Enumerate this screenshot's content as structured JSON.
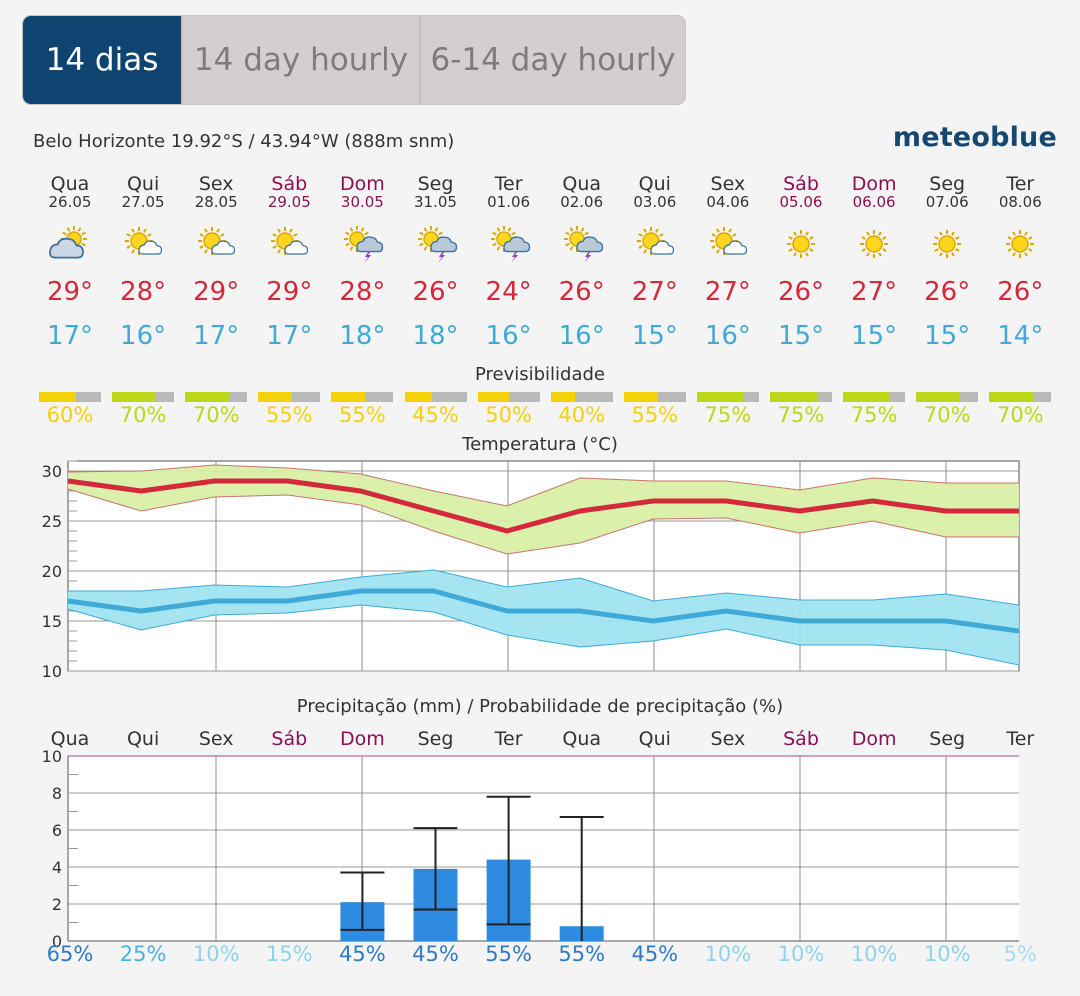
{
  "tabs": [
    {
      "label": "14 dias",
      "active": true
    },
    {
      "label": "14 day hourly",
      "active": false
    },
    {
      "label": "6-14 day hourly",
      "active": false
    }
  ],
  "location": {
    "text": "Belo Horizonte  19.92°S / 43.94°W (888m snm)"
  },
  "brand": {
    "name": "meteoblue"
  },
  "colors": {
    "brand": "#14486f",
    "tab_active": "#0f4471",
    "max_temp": "#d4283c",
    "min_temp": "#3fa9d8",
    "weekend": "#8c0f52",
    "precip_bar": "#2e8be0"
  },
  "days": [
    {
      "name": "Qua",
      "date": "26.05",
      "weekend": false,
      "icon": "partly-cloudy-icon",
      "max": "29°",
      "min": "17°"
    },
    {
      "name": "Qui",
      "date": "27.05",
      "weekend": false,
      "icon": "sun-cloud-icon",
      "max": "28°",
      "min": "16°"
    },
    {
      "name": "Sex",
      "date": "28.05",
      "weekend": false,
      "icon": "sun-cloud-icon",
      "max": "29°",
      "min": "17°"
    },
    {
      "name": "Sáb",
      "date": "29.05",
      "weekend": true,
      "icon": "sun-cloud-icon",
      "max": "29°",
      "min": "17°"
    },
    {
      "name": "Dom",
      "date": "30.05",
      "weekend": true,
      "icon": "sun-storm-icon",
      "max": "28°",
      "min": "18°"
    },
    {
      "name": "Seg",
      "date": "31.05",
      "weekend": false,
      "icon": "sun-storm-icon",
      "max": "26°",
      "min": "18°"
    },
    {
      "name": "Ter",
      "date": "01.06",
      "weekend": false,
      "icon": "sun-storm-icon",
      "max": "24°",
      "min": "16°"
    },
    {
      "name": "Qua",
      "date": "02.06",
      "weekend": false,
      "icon": "sun-storm-icon",
      "max": "26°",
      "min": "16°"
    },
    {
      "name": "Qui",
      "date": "03.06",
      "weekend": false,
      "icon": "sun-cloud-icon",
      "max": "27°",
      "min": "15°"
    },
    {
      "name": "Sex",
      "date": "04.06",
      "weekend": false,
      "icon": "sun-cloud-icon",
      "max": "27°",
      "min": "16°"
    },
    {
      "name": "Sáb",
      "date": "05.06",
      "weekend": true,
      "icon": "sun-icon",
      "max": "26°",
      "min": "15°"
    },
    {
      "name": "Dom",
      "date": "06.06",
      "weekend": true,
      "icon": "sun-icon",
      "max": "27°",
      "min": "15°"
    },
    {
      "name": "Seg",
      "date": "07.06",
      "weekend": false,
      "icon": "sun-icon",
      "max": "26°",
      "min": "15°"
    },
    {
      "name": "Ter",
      "date": "08.06",
      "weekend": false,
      "icon": "sun-icon",
      "max": "26°",
      "min": "14°"
    }
  ],
  "predictability": {
    "title": "Previsibilidade",
    "values": [
      {
        "pct": "60%",
        "fraction": 0.6,
        "color": "#f5d10a"
      },
      {
        "pct": "70%",
        "fraction": 0.7,
        "color": "#bcd618"
      },
      {
        "pct": "70%",
        "fraction": 0.7,
        "color": "#bcd618"
      },
      {
        "pct": "55%",
        "fraction": 0.55,
        "color": "#f5d10a"
      },
      {
        "pct": "55%",
        "fraction": 0.55,
        "color": "#f5d10a"
      },
      {
        "pct": "45%",
        "fraction": 0.45,
        "color": "#f5d10a"
      },
      {
        "pct": "50%",
        "fraction": 0.5,
        "color": "#f5d10a"
      },
      {
        "pct": "40%",
        "fraction": 0.4,
        "color": "#f5d10a"
      },
      {
        "pct": "55%",
        "fraction": 0.55,
        "color": "#f5d10a"
      },
      {
        "pct": "75%",
        "fraction": 0.75,
        "color": "#bcd618"
      },
      {
        "pct": "75%",
        "fraction": 0.75,
        "color": "#bcd618"
      },
      {
        "pct": "75%",
        "fraction": 0.75,
        "color": "#bcd618"
      },
      {
        "pct": "70%",
        "fraction": 0.7,
        "color": "#bcd618"
      },
      {
        "pct": "70%",
        "fraction": 0.7,
        "color": "#bcd618"
      }
    ]
  },
  "chart_data": [
    {
      "type": "line",
      "title": "Temperatura (°C)",
      "xlabel": "",
      "ylabel": "",
      "ylim": [
        10,
        31
      ],
      "yticks": [
        10,
        15,
        20,
        25,
        30
      ],
      "grid": true,
      "x": [
        "26.05",
        "27.05",
        "28.05",
        "29.05",
        "30.05",
        "31.05",
        "01.06",
        "02.06",
        "03.06",
        "04.06",
        "05.06",
        "06.06",
        "07.06",
        "08.06"
      ],
      "series": [
        {
          "values": [
            29,
            28,
            29,
            29,
            28,
            26,
            24,
            26,
            27,
            27,
            26,
            27,
            26,
            26
          ],
          "band_low": [
            28.2,
            26,
            27.4,
            27.6,
            26.6,
            24,
            21.7,
            22.8,
            25.2,
            25.3,
            23.8,
            25,
            23.4,
            23.4
          ],
          "band_high": [
            29.9,
            30,
            30.6,
            30.3,
            29.7,
            28,
            26.5,
            29.3,
            29,
            29,
            28.1,
            29.3,
            28.8,
            28.8
          ],
          "color": "#d4283c"
        },
        {
          "values": [
            17,
            16,
            17,
            17,
            18,
            18,
            16,
            16,
            15,
            16,
            15,
            15,
            15,
            14
          ],
          "band_low": [
            16.2,
            14.1,
            15.6,
            15.8,
            16.6,
            15.9,
            13.6,
            12.4,
            13,
            14.2,
            12.6,
            12.6,
            12.1,
            10.6
          ],
          "band_high": [
            18,
            18,
            18.6,
            18.4,
            19.4,
            20.1,
            18.4,
            19.3,
            17,
            17.8,
            17.1,
            17.1,
            17.7,
            16.6
          ],
          "color": "#3fa9d8"
        }
      ]
    },
    {
      "type": "bar",
      "title": "Precipitação (mm) / Probabilidade de precipitação (%)",
      "xlabel": "",
      "ylabel": "",
      "ylim": [
        0,
        10
      ],
      "yticks": [
        0,
        2,
        4,
        6,
        8,
        10
      ],
      "grid": true,
      "categories": [
        "Qua",
        "Qui",
        "Sex",
        "Sáb",
        "Dom",
        "Seg",
        "Ter",
        "Qua",
        "Qui",
        "Sex",
        "Sáb",
        "Dom",
        "Seg",
        "Ter"
      ],
      "values": [
        0,
        0,
        0,
        0,
        2.1,
        3.9,
        4.4,
        0.8,
        0,
        0,
        0,
        0,
        0,
        0
      ],
      "range_low": [
        null,
        null,
        null,
        null,
        0.6,
        1.7,
        0.9,
        null,
        null,
        null,
        null,
        null,
        null,
        null
      ],
      "range_high": [
        null,
        null,
        null,
        null,
        3.7,
        6.1,
        7.8,
        6.7,
        null,
        null,
        null,
        null,
        null,
        null
      ],
      "probability": [
        "65%",
        "25%",
        "10%",
        "15%",
        "45%",
        "45%",
        "55%",
        "55%",
        "45%",
        "10%",
        "10%",
        "10%",
        "10%",
        "5%"
      ],
      "probability_colors": [
        "#2f7bc4",
        "#4ab5e0",
        "#8fd3ea",
        "#8fd3ea",
        "#2f7bc4",
        "#2f7bc4",
        "#2f7bc4",
        "#2f7bc4",
        "#2f7bc4",
        "#8fd3ea",
        "#8fd3ea",
        "#8fd3ea",
        "#8fd3ea",
        "#a6dcee"
      ]
    }
  ]
}
